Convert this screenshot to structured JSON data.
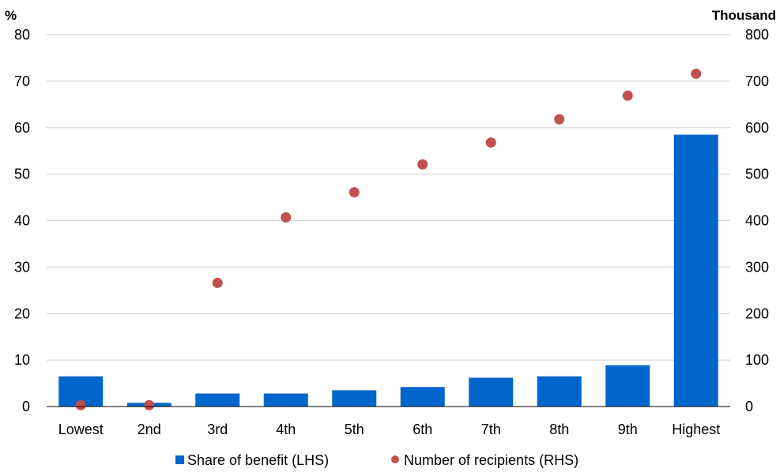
{
  "chart_data": {
    "type": "bar",
    "categories": [
      "Lowest",
      "2nd",
      "3rd",
      "4th",
      "5th",
      "6th",
      "7th",
      "8th",
      "9th",
      "Highest"
    ],
    "series": [
      {
        "name": "Share of benefit (LHS)",
        "type": "bar",
        "axis": "left",
        "color": "#0066cc",
        "values": [
          6.5,
          0.8,
          2.8,
          2.8,
          3.5,
          4.2,
          6.2,
          6.5,
          8.9,
          58.5
        ]
      },
      {
        "name": "Number of recipients (RHS)",
        "type": "scatter",
        "axis": "right",
        "color": "#c0504d",
        "values": [
          3,
          3,
          266,
          407,
          461,
          521,
          568,
          618,
          669,
          716
        ]
      }
    ],
    "left_axis": {
      "unit_label": "%",
      "ylim": [
        0,
        80
      ],
      "ticks": [
        "0",
        "10",
        "20",
        "30",
        "40",
        "50",
        "60",
        "70",
        "80"
      ]
    },
    "right_axis": {
      "unit_label": "Thousand",
      "ylim": [
        0,
        800
      ],
      "ticks": [
        "0",
        "100",
        "200",
        "300",
        "400",
        "500",
        "600",
        "700",
        "800"
      ]
    },
    "grid": true,
    "legend_position": "bottom"
  }
}
